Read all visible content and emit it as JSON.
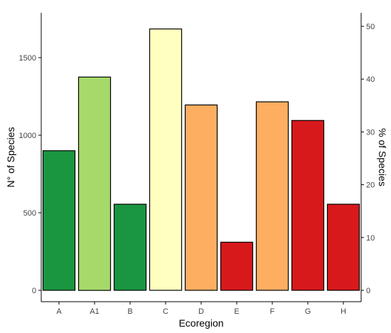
{
  "chart_data": {
    "type": "bar",
    "title": "",
    "xlabel": "Ecoregion",
    "ylabel": "N° of Species",
    "ylabel_right": "% of Species",
    "categories": [
      "A",
      "A1",
      "B",
      "C",
      "D",
      "E",
      "F",
      "G",
      "H"
    ],
    "values": [
      900,
      1375,
      555,
      1685,
      1195,
      310,
      1215,
      1095,
      555
    ],
    "bar_colors": [
      "#1a9641",
      "#a6d96a",
      "#1a9641",
      "#ffffbf",
      "#fdae61",
      "#d7191c",
      "#fdae61",
      "#d7191c",
      "#d7191c"
    ],
    "ylim": [
      0,
      1720
    ],
    "yticks": [
      0,
      500,
      1000,
      1500
    ],
    "ylim_right": [
      0,
      52.5
    ],
    "yticks_right": [
      0,
      10,
      20,
      30,
      40,
      50
    ],
    "grid": false,
    "legend": "none"
  }
}
